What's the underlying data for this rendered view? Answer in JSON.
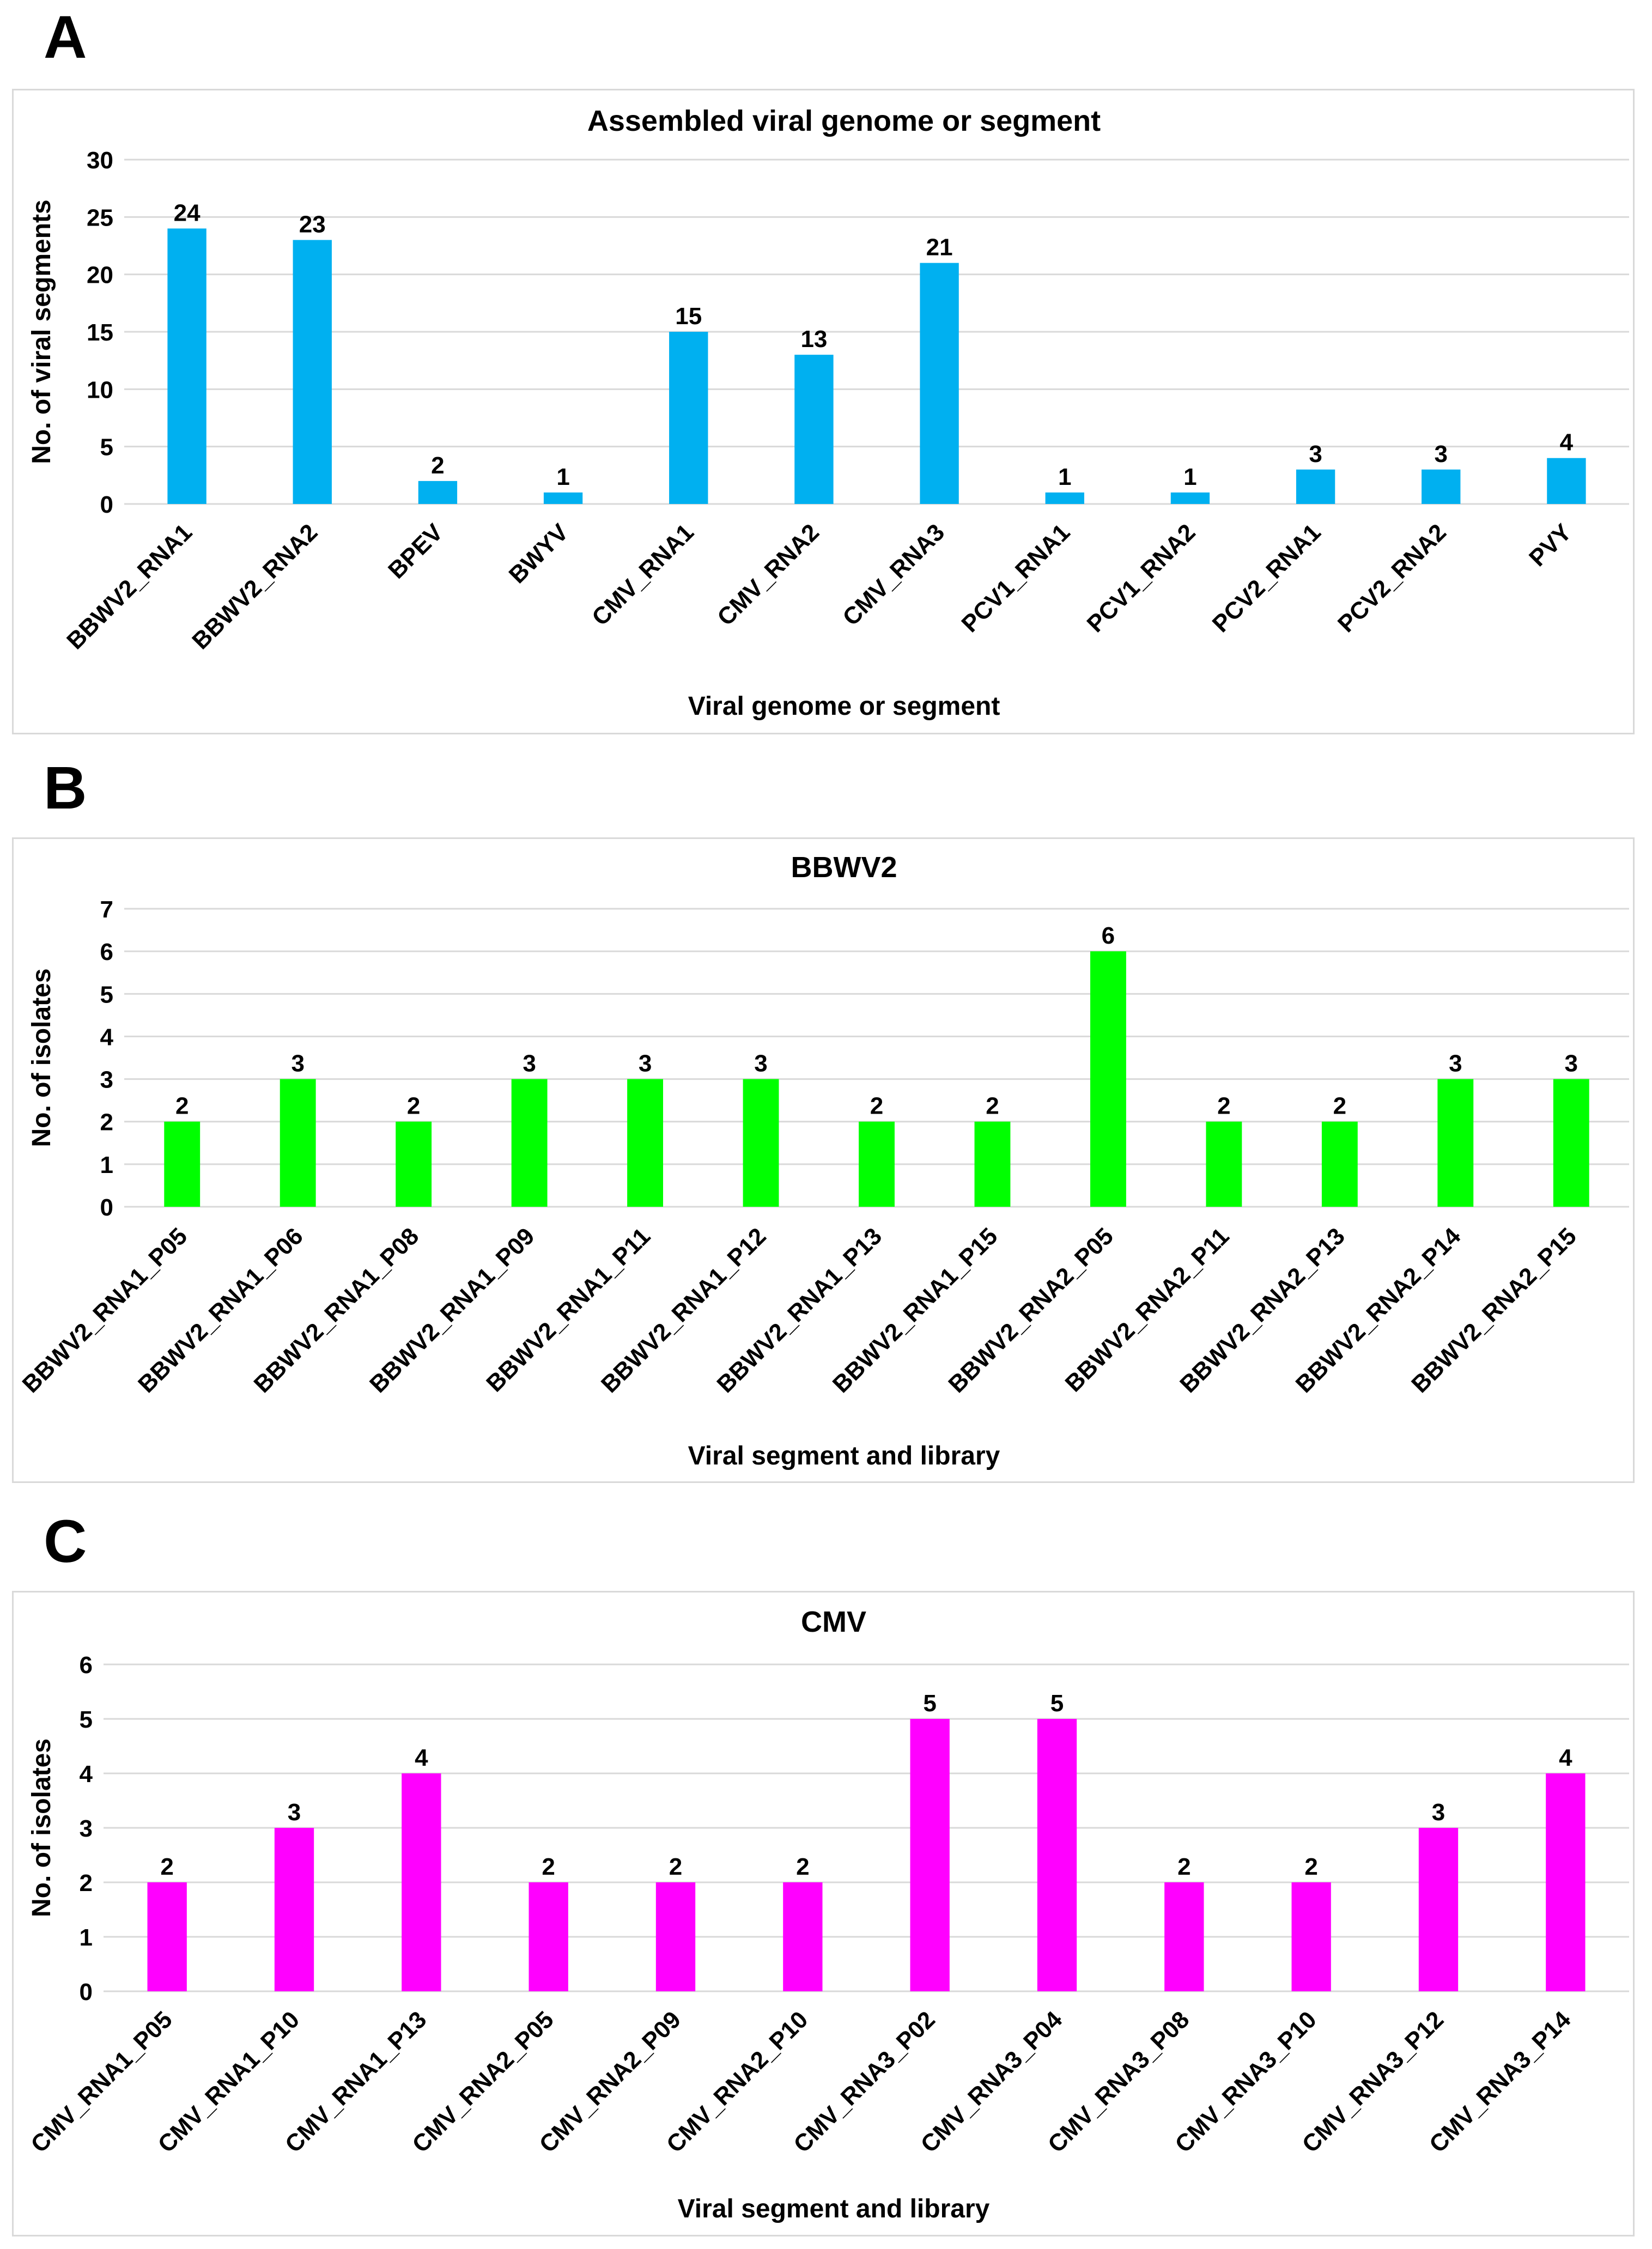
{
  "panels": [
    {
      "letter": "A"
    },
    {
      "letter": "B"
    },
    {
      "letter": "C"
    }
  ],
  "chart_data": [
    {
      "type": "bar",
      "title": "Assembled viral genome or segment",
      "xlabel": "Viral genome or segment",
      "ylabel": "No. of viral segments",
      "ylim": [
        0,
        30
      ],
      "ytick_step": 5,
      "yticks": [
        "0",
        "5",
        "10",
        "15",
        "20",
        "25",
        "30"
      ],
      "grid": true,
      "color": "#00b0f0",
      "categories": [
        "BBWV2_RNA1",
        "BBWV2_RNA2",
        "BPEV",
        "BWYV",
        "CMV_RNA1",
        "CMV_RNA2",
        "CMV_RNA3",
        "PCV1_RNA1",
        "PCV1_RNA2",
        "PCV2_RNA1",
        "PCV2_RNA2",
        "PVY"
      ],
      "values": [
        24,
        23,
        2,
        1,
        15,
        13,
        21,
        1,
        1,
        3,
        3,
        4
      ],
      "value_labels": [
        "24",
        "23",
        "2",
        "1",
        "15",
        "13",
        "21",
        "1",
        "1",
        "3",
        "3",
        "4"
      ]
    },
    {
      "type": "bar",
      "title": "BBWV2",
      "xlabel": "Viral segment and library",
      "ylabel": "No. of isolates",
      "ylim": [
        0,
        7
      ],
      "ytick_step": 1,
      "yticks": [
        "0",
        "1",
        "2",
        "3",
        "4",
        "5",
        "6",
        "7"
      ],
      "grid": true,
      "color": "#00ff00",
      "categories": [
        "BBWV2_RNA1_P05",
        "BBWV2_RNA1_P06",
        "BBWV2_RNA1_P08",
        "BBWV2_RNA1_P09",
        "BBWV2_RNA1_P11",
        "BBWV2_RNA1_P12",
        "BBWV2_RNA1_P13",
        "BBWV2_RNA1_P15",
        "BBWV2_RNA2_P05",
        "BBWV2_RNA2_P11",
        "BBWV2_RNA2_P13",
        "BBWV2_RNA2_P14",
        "BBWV2_RNA2_P15"
      ],
      "values": [
        2,
        3,
        2,
        3,
        3,
        3,
        2,
        2,
        6,
        2,
        2,
        3,
        3
      ],
      "value_labels": [
        "2",
        "3",
        "2",
        "3",
        "3",
        "3",
        "2",
        "2",
        "6",
        "2",
        "2",
        "3",
        "3"
      ]
    },
    {
      "type": "bar",
      "title": "CMV",
      "xlabel": "Viral segment and library",
      "ylabel": "No. of isolates",
      "ylim": [
        0,
        6
      ],
      "ytick_step": 1,
      "yticks": [
        "0",
        "1",
        "2",
        "3",
        "4",
        "5",
        "6"
      ],
      "grid": true,
      "color": "#ff00ff",
      "categories": [
        "CMV_RNA1_P05",
        "CMV_RNA1_P10",
        "CMV_RNA1_P13",
        "CMV_RNA2_P05",
        "CMV_RNA2_P09",
        "CMV_RNA2_P10",
        "CMV_RNA3_P02",
        "CMV_RNA3_P04",
        "CMV_RNA3_P08",
        "CMV_RNA3_P10",
        "CMV_RNA3_P12",
        "CMV_RNA3_P14"
      ],
      "values": [
        2,
        3,
        4,
        2,
        2,
        2,
        5,
        5,
        2,
        2,
        3,
        4
      ],
      "value_labels": [
        "2",
        "3",
        "4",
        "2",
        "2",
        "2",
        "5",
        "5",
        "2",
        "2",
        "3",
        "4"
      ]
    }
  ]
}
